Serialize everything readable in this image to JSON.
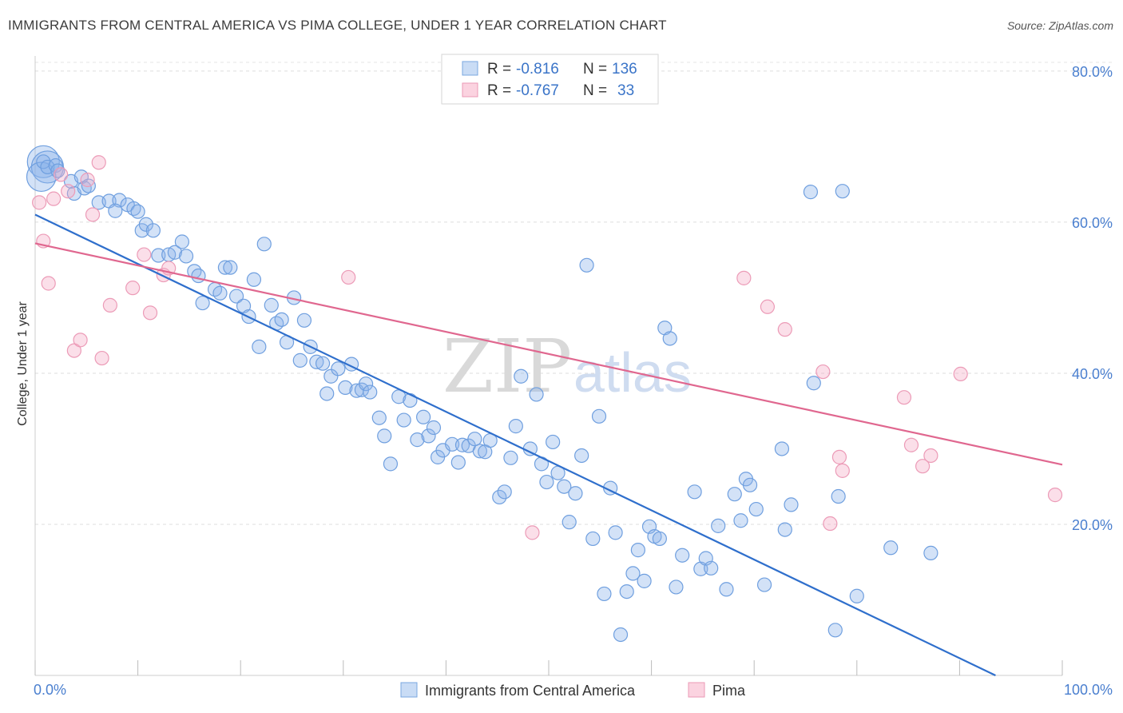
{
  "title": "IMMIGRANTS FROM CENTRAL AMERICA VS PIMA COLLEGE, UNDER 1 YEAR CORRELATION CHART",
  "source": "Source: ZipAtlas.com",
  "watermark": {
    "zip": "ZIP",
    "atlas": "atlas"
  },
  "legend": {
    "rows": [
      {
        "r_label": "R =",
        "r_value": "-0.816",
        "n_label": "N =",
        "n_value": "136"
      },
      {
        "r_label": "R =",
        "r_value": "-0.767",
        "n_label": "N =",
        "n_value": "33"
      }
    ]
  },
  "chart_data": {
    "type": "scatter",
    "xlabel": "",
    "ylabel": "College, Under 1 year",
    "xlim": [
      0,
      100
    ],
    "ylim": [
      0,
      82
    ],
    "x_tick_labels": [
      "0.0%",
      "100.0%"
    ],
    "y_ticks": [
      20,
      40,
      60,
      80
    ],
    "y_tick_labels": [
      "20.0%",
      "40.0%",
      "60.0%",
      "80.0%"
    ],
    "grid": true,
    "legend_position": "top-center",
    "series": [
      {
        "name": "Immigrants from Central America",
        "color": "#6fa3e6",
        "line_color": "#2f6fcc",
        "trend": {
          "x": [
            0,
            93.5
          ],
          "y": [
            61.0,
            0
          ]
        },
        "points": [
          [
            0.8,
            68.0
          ],
          [
            1.2,
            67.3
          ],
          [
            2.0,
            67.5
          ],
          [
            2.2,
            66.8
          ],
          [
            3.5,
            65.4
          ],
          [
            4.5,
            66.0
          ],
          [
            3.8,
            63.8
          ],
          [
            4.8,
            64.5
          ],
          [
            5.2,
            64.8
          ],
          [
            6.2,
            62.6
          ],
          [
            7.2,
            62.8
          ],
          [
            8.2,
            62.9
          ],
          [
            7.8,
            61.5
          ],
          [
            9.0,
            62.3
          ],
          [
            9.6,
            61.8
          ],
          [
            10.0,
            61.4
          ],
          [
            10.4,
            58.9
          ],
          [
            10.8,
            59.7
          ],
          [
            11.5,
            58.9
          ],
          [
            12.0,
            55.6
          ],
          [
            13.0,
            55.7
          ],
          [
            13.6,
            56.0
          ],
          [
            14.3,
            57.4
          ],
          [
            14.7,
            55.5
          ],
          [
            15.5,
            53.5
          ],
          [
            15.9,
            52.9
          ],
          [
            16.3,
            49.3
          ],
          [
            17.5,
            51.1
          ],
          [
            18.0,
            50.6
          ],
          [
            18.5,
            54.0
          ],
          [
            19.0,
            54.0
          ],
          [
            19.6,
            50.2
          ],
          [
            20.3,
            48.9
          ],
          [
            20.8,
            47.5
          ],
          [
            21.3,
            52.4
          ],
          [
            21.8,
            43.5
          ],
          [
            22.3,
            57.1
          ],
          [
            23.0,
            49.0
          ],
          [
            23.5,
            46.6
          ],
          [
            24.0,
            47.1
          ],
          [
            24.5,
            44.1
          ],
          [
            25.2,
            50.0
          ],
          [
            25.8,
            41.7
          ],
          [
            26.2,
            47.0
          ],
          [
            26.8,
            43.5
          ],
          [
            27.4,
            41.5
          ],
          [
            28.0,
            41.3
          ],
          [
            28.4,
            37.3
          ],
          [
            28.8,
            39.6
          ],
          [
            29.5,
            40.6
          ],
          [
            30.2,
            38.1
          ],
          [
            30.8,
            41.2
          ],
          [
            31.3,
            37.7
          ],
          [
            31.8,
            37.8
          ],
          [
            32.2,
            38.6
          ],
          [
            32.6,
            37.5
          ],
          [
            33.5,
            34.1
          ],
          [
            34.0,
            31.7
          ],
          [
            34.6,
            28.0
          ],
          [
            35.4,
            36.9
          ],
          [
            35.9,
            33.8
          ],
          [
            36.5,
            36.4
          ],
          [
            37.2,
            31.2
          ],
          [
            37.8,
            34.2
          ],
          [
            38.3,
            31.7
          ],
          [
            38.8,
            32.8
          ],
          [
            39.2,
            28.9
          ],
          [
            39.7,
            29.8
          ],
          [
            40.6,
            30.6
          ],
          [
            41.2,
            28.2
          ],
          [
            41.6,
            30.5
          ],
          [
            42.2,
            30.4
          ],
          [
            42.8,
            31.3
          ],
          [
            43.3,
            29.7
          ],
          [
            43.8,
            29.6
          ],
          [
            44.3,
            31.1
          ],
          [
            45.2,
            23.6
          ],
          [
            45.7,
            24.3
          ],
          [
            46.3,
            28.8
          ],
          [
            46.8,
            33.0
          ],
          [
            47.3,
            39.6
          ],
          [
            48.2,
            30.0
          ],
          [
            48.8,
            37.2
          ],
          [
            49.3,
            28.0
          ],
          [
            49.8,
            25.6
          ],
          [
            50.4,
            30.9
          ],
          [
            50.9,
            26.8
          ],
          [
            51.5,
            25.0
          ],
          [
            52.0,
            20.3
          ],
          [
            52.6,
            24.1
          ],
          [
            53.2,
            29.1
          ],
          [
            53.7,
            54.3
          ],
          [
            54.3,
            18.1
          ],
          [
            54.9,
            34.3
          ],
          [
            55.4,
            10.8
          ],
          [
            56.0,
            24.8
          ],
          [
            56.5,
            18.9
          ],
          [
            57.0,
            5.4
          ],
          [
            57.6,
            11.1
          ],
          [
            58.2,
            13.5
          ],
          [
            58.7,
            16.6
          ],
          [
            59.3,
            12.5
          ],
          [
            59.8,
            19.7
          ],
          [
            60.3,
            18.4
          ],
          [
            60.8,
            18.1
          ],
          [
            61.3,
            46.0
          ],
          [
            61.8,
            44.6
          ],
          [
            62.4,
            11.7
          ],
          [
            63.0,
            15.9
          ],
          [
            64.2,
            24.3
          ],
          [
            64.8,
            14.1
          ],
          [
            65.3,
            15.5
          ],
          [
            65.8,
            14.2
          ],
          [
            66.5,
            19.8
          ],
          [
            67.3,
            11.4
          ],
          [
            68.1,
            24.0
          ],
          [
            68.7,
            20.5
          ],
          [
            69.2,
            26.0
          ],
          [
            69.6,
            25.2
          ],
          [
            70.2,
            22.0
          ],
          [
            71.0,
            12.0
          ],
          [
            72.7,
            30.0
          ],
          [
            73.0,
            19.3
          ],
          [
            73.6,
            22.6
          ],
          [
            75.5,
            64.0
          ],
          [
            75.8,
            38.7
          ],
          [
            78.6,
            64.1
          ],
          [
            77.9,
            6.0
          ],
          [
            78.2,
            23.7
          ],
          [
            80.0,
            10.5
          ],
          [
            83.3,
            16.9
          ],
          [
            87.2,
            16.2
          ]
        ],
        "large_points": [
          [
            0.8,
            68.0,
            1
          ],
          [
            1.2,
            67.3,
            1
          ],
          [
            0.6,
            66.0,
            0.7
          ]
        ]
      },
      {
        "name": "Pima",
        "color": "#f2a3bd",
        "line_color": "#e0678f",
        "trend": {
          "x": [
            0,
            100
          ],
          "y": [
            57.2,
            27.9
          ]
        },
        "points": [
          [
            0.4,
            62.6
          ],
          [
            0.8,
            57.5
          ],
          [
            1.3,
            51.9
          ],
          [
            1.8,
            63.1
          ],
          [
            2.5,
            66.3
          ],
          [
            3.2,
            64.1
          ],
          [
            3.8,
            43.0
          ],
          [
            4.4,
            44.4
          ],
          [
            5.1,
            65.6
          ],
          [
            5.6,
            61.0
          ],
          [
            6.2,
            67.9
          ],
          [
            6.5,
            42.0
          ],
          [
            7.3,
            49.0
          ],
          [
            9.5,
            51.3
          ],
          [
            10.6,
            55.7
          ],
          [
            11.2,
            48.0
          ],
          [
            12.5,
            53.0
          ],
          [
            13.0,
            53.9
          ],
          [
            30.5,
            52.7
          ],
          [
            48.4,
            18.9
          ],
          [
            69.0,
            52.6
          ],
          [
            71.3,
            48.8
          ],
          [
            73.0,
            45.8
          ],
          [
            76.7,
            40.2
          ],
          [
            77.4,
            20.1
          ],
          [
            78.3,
            28.9
          ],
          [
            78.6,
            27.1
          ],
          [
            84.6,
            36.8
          ],
          [
            85.3,
            30.5
          ],
          [
            86.4,
            27.7
          ],
          [
            87.2,
            29.1
          ],
          [
            90.1,
            39.9
          ],
          [
            99.3,
            23.9
          ]
        ]
      }
    ]
  }
}
